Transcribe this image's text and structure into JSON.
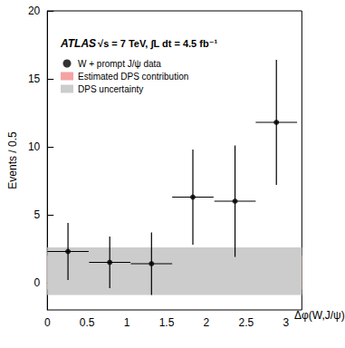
{
  "chart_data": {
    "type": "scatter",
    "annotations": [
      "ATLAS",
      "√s = 7 TeV, ∫L dt = 4.5 fb⁻¹"
    ],
    "x_label": "Δφ(W,J/ψ)",
    "y_label": "Events / 0.5",
    "series": [
      {
        "name": "W + prompt J/ψ data",
        "type": "scatter",
        "color": "#000000",
        "marker": "circle",
        "x": [
          0.26,
          0.785,
          1.31,
          1.83,
          2.36,
          2.88
        ],
        "values": [
          2.3,
          1.5,
          1.4,
          6.3,
          6.0,
          11.8
        ],
        "x_errors": [
          0.26,
          0.26,
          0.26,
          0.26,
          0.26,
          0.26
        ],
        "y_errors": [
          2.1,
          1.9,
          2.3,
          3.5,
          4.1,
          4.6
        ]
      },
      {
        "name": "Estimated DPS contribution",
        "type": "band",
        "color": "#f4a3a3",
        "range": [
          -0.5,
          2.0
        ]
      },
      {
        "name": "DPS uncertainty",
        "type": "band",
        "color": "#cccccc",
        "range": [
          -0.9,
          2.6
        ]
      }
    ],
    "xlim": [
      0,
      3.2
    ],
    "xticks": [
      0,
      0.5,
      1,
      1.5,
      2,
      2.5,
      3
    ],
    "ylim": [
      -2,
      20
    ],
    "yticks": [
      0,
      5,
      10,
      15,
      20
    ],
    "legend": "upper left"
  }
}
